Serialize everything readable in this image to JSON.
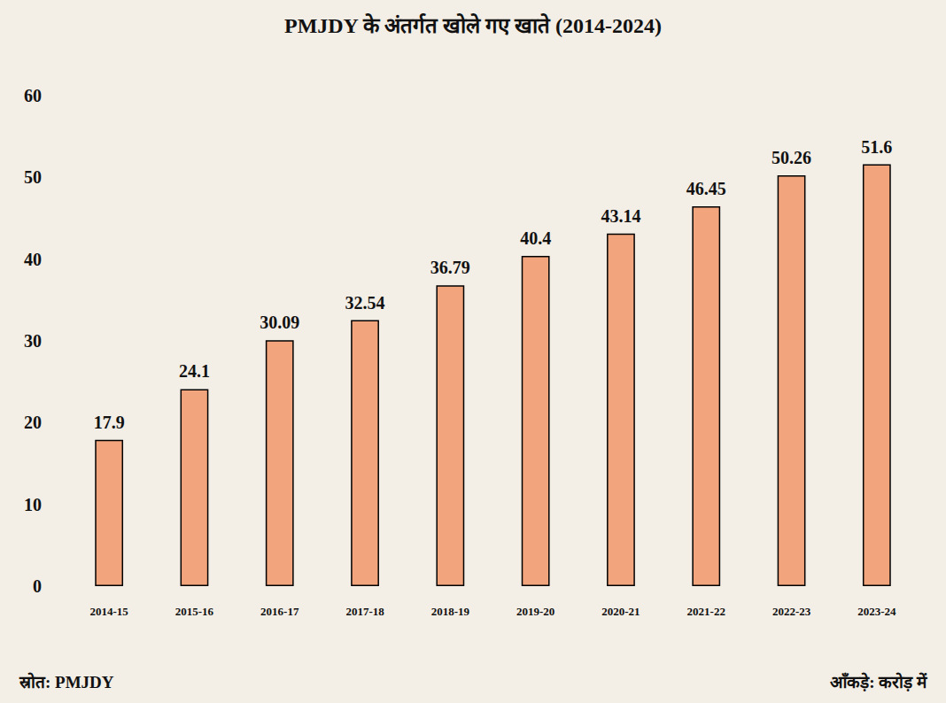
{
  "chart_data": {
    "type": "bar",
    "title": "PMJDY के अंतर्गत खोले गए खाते (2014-2024)",
    "categories": [
      "2014-15",
      "2015-16",
      "2016-17",
      "2017-18",
      "2018-19",
      "2019-20",
      "2020-21",
      "2021-22",
      "2022-23",
      "2023-24"
    ],
    "values": [
      17.9,
      24.1,
      30.09,
      32.54,
      36.79,
      40.4,
      43.14,
      46.45,
      50.26,
      51.6
    ],
    "color": "#f2a47c",
    "ylim": [
      0,
      60
    ],
    "yticks": [
      0,
      10,
      20,
      30,
      40,
      50,
      60
    ],
    "grid": false,
    "data_labels": true,
    "annotations": [
      "स्रोत: PMJDY",
      "आँकड़े: करोड़ में"
    ]
  }
}
